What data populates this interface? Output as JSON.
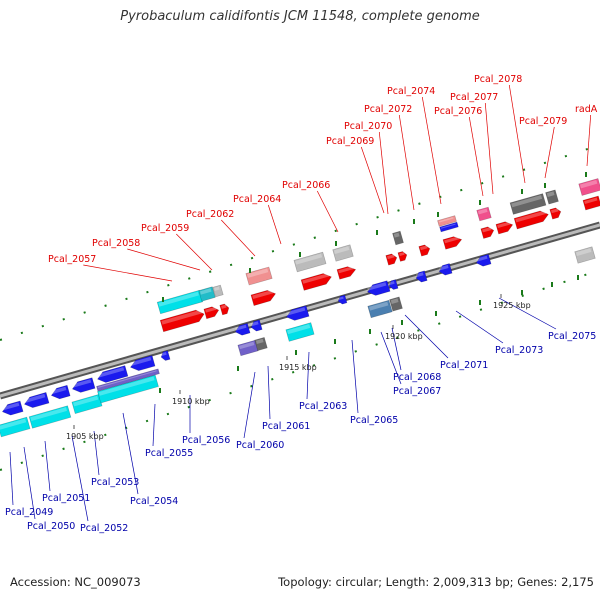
{
  "title": "Pyrobaculum calidifontis JCM 11548, complete genome",
  "footer": {
    "accession": "Accession: NC_009073",
    "topology": "Topology: circular; Length: 2,009,313 bp; Genes: 2,175"
  },
  "scale_labels": [
    "1905 kbp",
    "1910 kbp",
    "1915 kbp",
    "1920 kbp",
    "1925 kbp"
  ],
  "colors": {
    "top_label": "#e00000",
    "bottom_label": "#0000aa",
    "leader_top": "#e00000",
    "leader_bottom": "#0000aa",
    "backbone": "#888888",
    "tick": "#1a7a1a"
  },
  "top_labels": [
    "Pcal_2057",
    "Pcal_2058",
    "Pcal_2059",
    "Pcal_2062",
    "Pcal_2064",
    "Pcal_2066",
    "Pcal_2069",
    "Pcal_2070",
    "Pcal_2072",
    "Pcal_2074",
    "Pcal_2076",
    "Pcal_2077",
    "Pcal_2078",
    "Pcal_2079",
    "radA"
  ],
  "bottom_labels": [
    "Pcal_2049",
    "Pcal_2050",
    "Pcal_2051",
    "Pcal_2052",
    "Pcal_2053",
    "Pcal_2054",
    "Pcal_2055",
    "Pcal_2056",
    "Pcal_2060",
    "Pcal_2061",
    "Pcal_2063",
    "Pcal_2065",
    "Pcal_2067",
    "Pcal_2068",
    "Pcal_2071",
    "Pcal_2073",
    "Pcal_2075"
  ]
}
